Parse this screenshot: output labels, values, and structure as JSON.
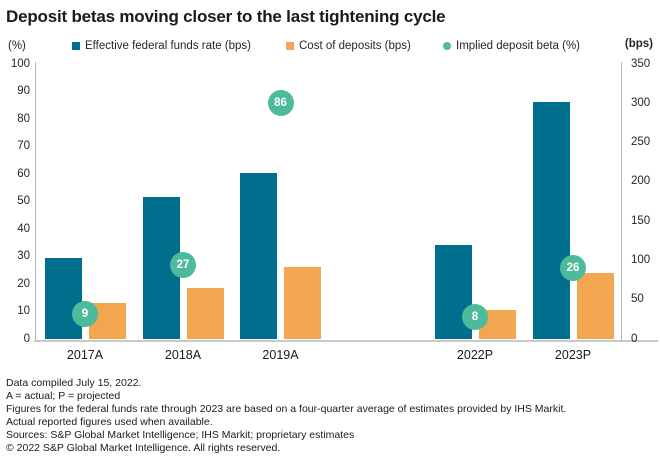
{
  "title": "Deposit betas moving closer to the last tightening cycle",
  "axes": {
    "left_unit": "(%)",
    "right_unit": "(bps)",
    "left_ticks": [
      100,
      90,
      80,
      70,
      60,
      50,
      40,
      30,
      20,
      10,
      0
    ],
    "right_ticks": [
      350,
      300,
      250,
      200,
      150,
      100,
      50,
      0
    ]
  },
  "legend": [
    {
      "label": "Effective federal funds rate (bps)",
      "color": "#006f8d",
      "shape": "square"
    },
    {
      "label": "Cost of deposits (bps)",
      "color": "#f2a64f",
      "shape": "square"
    },
    {
      "label": "Implied deposit beta (%)",
      "color": "#4cba9b",
      "shape": "circle"
    }
  ],
  "chart_data": {
    "type": "bar",
    "categories": [
      "2017A",
      "2018A",
      "2019A",
      "2022P",
      "2023P"
    ],
    "series": [
      {
        "name": "Effective federal funds rate (bps)",
        "axis": "right",
        "color": "#006f8d",
        "values": [
          103,
          181,
          211,
          120,
          302
        ]
      },
      {
        "name": "Cost of deposits (bps)",
        "axis": "right",
        "color": "#f2a64f",
        "values": [
          46,
          65,
          92,
          37,
          84
        ]
      },
      {
        "name": "Implied deposit beta (%)",
        "axis": "left",
        "color": "#4cba9b",
        "values": [
          9,
          27,
          86,
          8,
          26
        ]
      }
    ],
    "title": "Deposit betas moving closer to the last tightening cycle",
    "xlabel": "",
    "ylabel_left": "(%)",
    "ylabel_right": "(bps)",
    "left_axis_range": [
      0,
      100
    ],
    "right_axis_range": [
      0,
      350
    ],
    "grid": false,
    "legend_position": "top"
  },
  "footnotes": [
    "Data compiled July 15, 2022.",
    "A = actual; P = projected",
    "Figures for the federal funds rate through 2023 are based on a four-quarter average of estimates provided by IHS Markit.",
    "Actual reported figures used when available.",
    "Sources: S&P Global Market Intelligence; IHS Markit; proprietary estimates",
    "© 2022 S&P Global Market Intelligence. All rights reserved."
  ]
}
